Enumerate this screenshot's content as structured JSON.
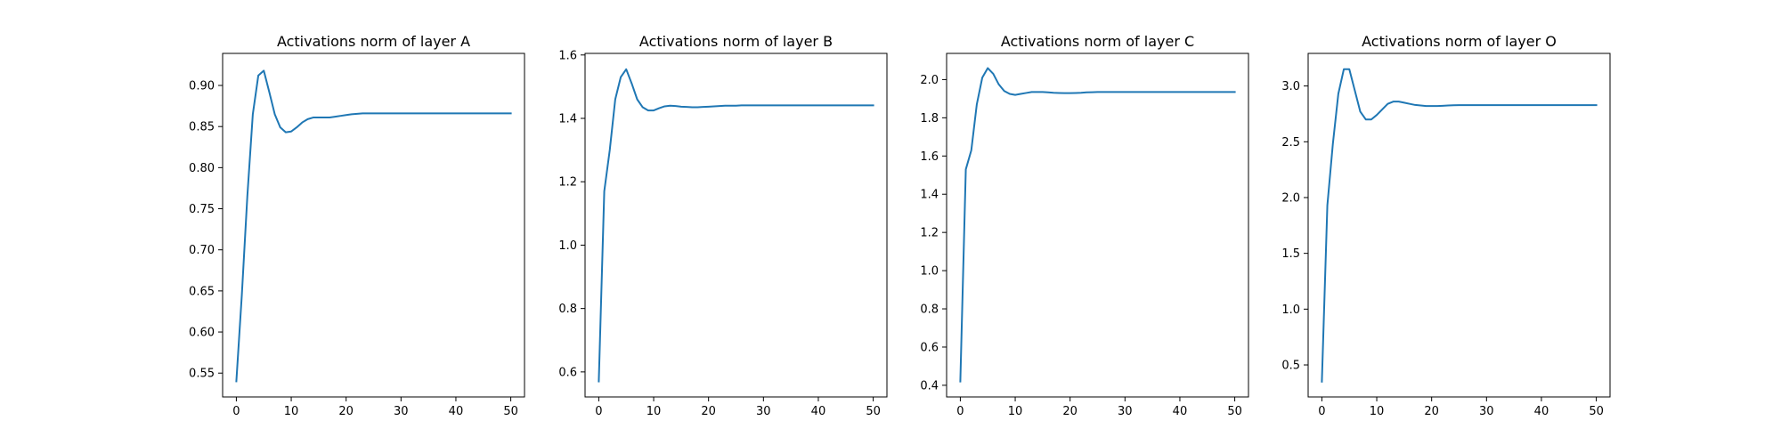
{
  "chart_data": [
    {
      "type": "line",
      "title": "Activations norm of layer A",
      "xlabel": "",
      "ylabel": "",
      "xlim": [
        -2.5,
        52.5
      ],
      "ylim": [
        0.521,
        0.939
      ],
      "xticks": [
        0,
        10,
        20,
        30,
        40,
        50
      ],
      "yticks": [
        0.55,
        0.6,
        0.65,
        0.7,
        0.75,
        0.8,
        0.85,
        0.9
      ],
      "ytick_labels": [
        "0.55",
        "0.60",
        "0.65",
        "0.70",
        "0.75",
        "0.80",
        "0.85",
        "0.90"
      ],
      "grid": false,
      "series": [
        {
          "color": "#1f77b4",
          "x": [
            0,
            1,
            2,
            3,
            4,
            5,
            6,
            7,
            8,
            9,
            10,
            11,
            12,
            13,
            14,
            15,
            16,
            17,
            18,
            19,
            20,
            21,
            22,
            23,
            24,
            25,
            26,
            27,
            28,
            29,
            30,
            31,
            32,
            33,
            34,
            35,
            36,
            37,
            38,
            39,
            40,
            41,
            42,
            43,
            44,
            45,
            46,
            47,
            48,
            49,
            50
          ],
          "y": [
            0.54,
            0.645,
            0.765,
            0.865,
            0.912,
            0.918,
            0.892,
            0.865,
            0.849,
            0.843,
            0.844,
            0.849,
            0.855,
            0.859,
            0.861,
            0.861,
            0.861,
            0.861,
            0.862,
            0.863,
            0.864,
            0.865,
            0.8655,
            0.866,
            0.866,
            0.866,
            0.866,
            0.866,
            0.866,
            0.866,
            0.866,
            0.866,
            0.866,
            0.866,
            0.866,
            0.866,
            0.866,
            0.866,
            0.866,
            0.866,
            0.866,
            0.866,
            0.866,
            0.866,
            0.866,
            0.866,
            0.866,
            0.866,
            0.866,
            0.866,
            0.866
          ]
        }
      ]
    },
    {
      "type": "line",
      "title": "Activations norm of layer B",
      "xlabel": "",
      "ylabel": "",
      "xlim": [
        -2.5,
        52.5
      ],
      "ylim": [
        0.521,
        1.605
      ],
      "xticks": [
        0,
        10,
        20,
        30,
        40,
        50
      ],
      "yticks": [
        0.6,
        0.8,
        1.0,
        1.2,
        1.4,
        1.6
      ],
      "ytick_labels": [
        "0.6",
        "0.8",
        "1.0",
        "1.2",
        "1.4",
        "1.6"
      ],
      "grid": false,
      "series": [
        {
          "color": "#1f77b4",
          "x": [
            0,
            1,
            2,
            3,
            4,
            5,
            6,
            7,
            8,
            9,
            10,
            11,
            12,
            13,
            14,
            15,
            16,
            17,
            18,
            19,
            20,
            21,
            22,
            23,
            24,
            25,
            26,
            27,
            28,
            29,
            30,
            31,
            32,
            33,
            34,
            35,
            36,
            37,
            38,
            39,
            40,
            41,
            42,
            43,
            44,
            45,
            46,
            47,
            48,
            49,
            50
          ],
          "y": [
            0.57,
            1.17,
            1.3,
            1.46,
            1.53,
            1.555,
            1.51,
            1.46,
            1.435,
            1.425,
            1.425,
            1.432,
            1.438,
            1.44,
            1.439,
            1.437,
            1.436,
            1.435,
            1.435,
            1.436,
            1.437,
            1.438,
            1.439,
            1.44,
            1.44,
            1.44,
            1.441,
            1.441,
            1.441,
            1.441,
            1.441,
            1.441,
            1.441,
            1.441,
            1.441,
            1.441,
            1.441,
            1.441,
            1.441,
            1.441,
            1.441,
            1.441,
            1.441,
            1.441,
            1.441,
            1.441,
            1.441,
            1.441,
            1.441,
            1.441,
            1.441
          ]
        }
      ]
    },
    {
      "type": "line",
      "title": "Activations norm of layer C",
      "xlabel": "",
      "ylabel": "",
      "xlim": [
        -2.5,
        52.5
      ],
      "ylim": [
        0.339,
        2.137
      ],
      "xticks": [
        0,
        10,
        20,
        30,
        40,
        50
      ],
      "yticks": [
        0.4,
        0.6,
        0.8,
        1.0,
        1.2,
        1.4,
        1.6,
        1.8,
        2.0
      ],
      "ytick_labels": [
        "0.4",
        "0.6",
        "0.8",
        "1.0",
        "1.2",
        "1.4",
        "1.6",
        "1.8",
        "2.0"
      ],
      "grid": false,
      "series": [
        {
          "color": "#1f77b4",
          "x": [
            0,
            1,
            2,
            3,
            4,
            5,
            6,
            7,
            8,
            9,
            10,
            11,
            12,
            13,
            14,
            15,
            16,
            17,
            18,
            19,
            20,
            21,
            22,
            23,
            24,
            25,
            26,
            27,
            28,
            29,
            30,
            31,
            32,
            33,
            34,
            35,
            36,
            37,
            38,
            39,
            40,
            41,
            42,
            43,
            44,
            45,
            46,
            47,
            48,
            49,
            50
          ],
          "y": [
            0.42,
            1.53,
            1.63,
            1.87,
            2.01,
            2.06,
            2.03,
            1.975,
            1.94,
            1.925,
            1.92,
            1.925,
            1.93,
            1.935,
            1.935,
            1.935,
            1.933,
            1.931,
            1.93,
            1.929,
            1.929,
            1.93,
            1.931,
            1.933,
            1.934,
            1.935,
            1.935,
            1.935,
            1.935,
            1.935,
            1.935,
            1.935,
            1.935,
            1.935,
            1.935,
            1.935,
            1.935,
            1.935,
            1.935,
            1.935,
            1.935,
            1.935,
            1.935,
            1.935,
            1.935,
            1.935,
            1.935,
            1.935,
            1.935,
            1.935,
            1.935
          ]
        }
      ]
    },
    {
      "type": "line",
      "title": "Activations norm of layer O",
      "xlabel": "",
      "ylabel": "",
      "xlim": [
        -2.5,
        52.5
      ],
      "ylim": [
        0.213,
        3.292
      ],
      "xticks": [
        0,
        10,
        20,
        30,
        40,
        50
      ],
      "yticks": [
        0.5,
        1.0,
        1.5,
        2.0,
        2.5,
        3.0
      ],
      "ytick_labels": [
        "0.5",
        "1.0",
        "1.5",
        "2.0",
        "2.5",
        "3.0"
      ],
      "grid": false,
      "series": [
        {
          "color": "#1f77b4",
          "x": [
            0,
            1,
            2,
            3,
            4,
            5,
            6,
            7,
            8,
            9,
            10,
            11,
            12,
            13,
            14,
            15,
            16,
            17,
            18,
            19,
            20,
            21,
            22,
            23,
            24,
            25,
            26,
            27,
            28,
            29,
            30,
            31,
            32,
            33,
            34,
            35,
            36,
            37,
            38,
            39,
            40,
            41,
            42,
            43,
            44,
            45,
            46,
            47,
            48,
            49,
            50
          ],
          "y": [
            0.35,
            1.93,
            2.48,
            2.93,
            3.15,
            3.15,
            2.96,
            2.77,
            2.7,
            2.7,
            2.74,
            2.79,
            2.84,
            2.86,
            2.86,
            2.85,
            2.84,
            2.83,
            2.825,
            2.82,
            2.82,
            2.82,
            2.822,
            2.825,
            2.827,
            2.828,
            2.828,
            2.828,
            2.828,
            2.828,
            2.828,
            2.828,
            2.828,
            2.828,
            2.828,
            2.828,
            2.828,
            2.828,
            2.828,
            2.828,
            2.828,
            2.828,
            2.828,
            2.828,
            2.828,
            2.828,
            2.828,
            2.828,
            2.828,
            2.828,
            2.828
          ]
        }
      ]
    }
  ]
}
